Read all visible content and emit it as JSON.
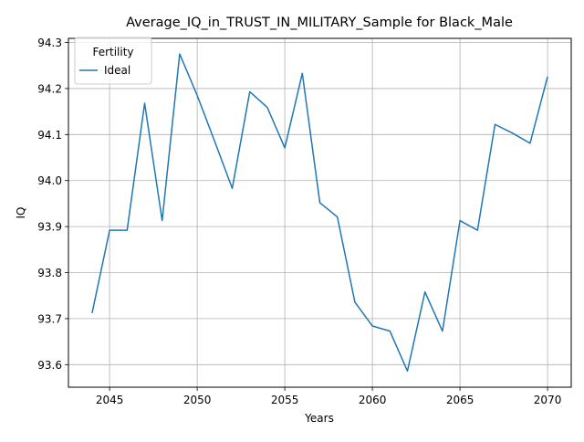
{
  "chart_data": {
    "type": "line",
    "title": "Average_IQ_in_TRUST_IN_MILITARY_Sample for Black_Male",
    "xlabel": "Years",
    "ylabel": "IQ",
    "xlim": [
      2042.65,
      2071.35
    ],
    "ylim": [
      93.551,
      94.309
    ],
    "xticks": [
      2045,
      2050,
      2055,
      2060,
      2065,
      2070
    ],
    "yticks": [
      93.6,
      93.7,
      93.8,
      93.9,
      94.0,
      94.1,
      94.2,
      94.3
    ],
    "ytick_labels": [
      "93.6",
      "93.7",
      "93.8",
      "93.9",
      "94.0",
      "94.1",
      "94.2",
      "94.3"
    ],
    "grid": true,
    "legend": {
      "title": "Fertility",
      "position": "top-left"
    },
    "series": [
      {
        "name": "Ideal",
        "color": "#1f77b4",
        "x": [
          2044,
          2045,
          2046,
          2047,
          2048,
          2049,
          2050,
          2051,
          2052,
          2053,
          2054,
          2055,
          2056,
          2057,
          2058,
          2059,
          2060,
          2061,
          2062,
          2063,
          2064,
          2065,
          2066,
          2067,
          2068,
          2069,
          2070
        ],
        "y": [
          93.712,
          93.892,
          93.892,
          94.168,
          93.913,
          94.275,
          94.185,
          94.085,
          93.983,
          94.193,
          94.159,
          94.071,
          94.233,
          93.952,
          93.921,
          93.736,
          93.684,
          93.673,
          93.586,
          93.758,
          93.673,
          93.913,
          93.892,
          94.122,
          94.103,
          94.081,
          94.226
        ]
      }
    ]
  }
}
